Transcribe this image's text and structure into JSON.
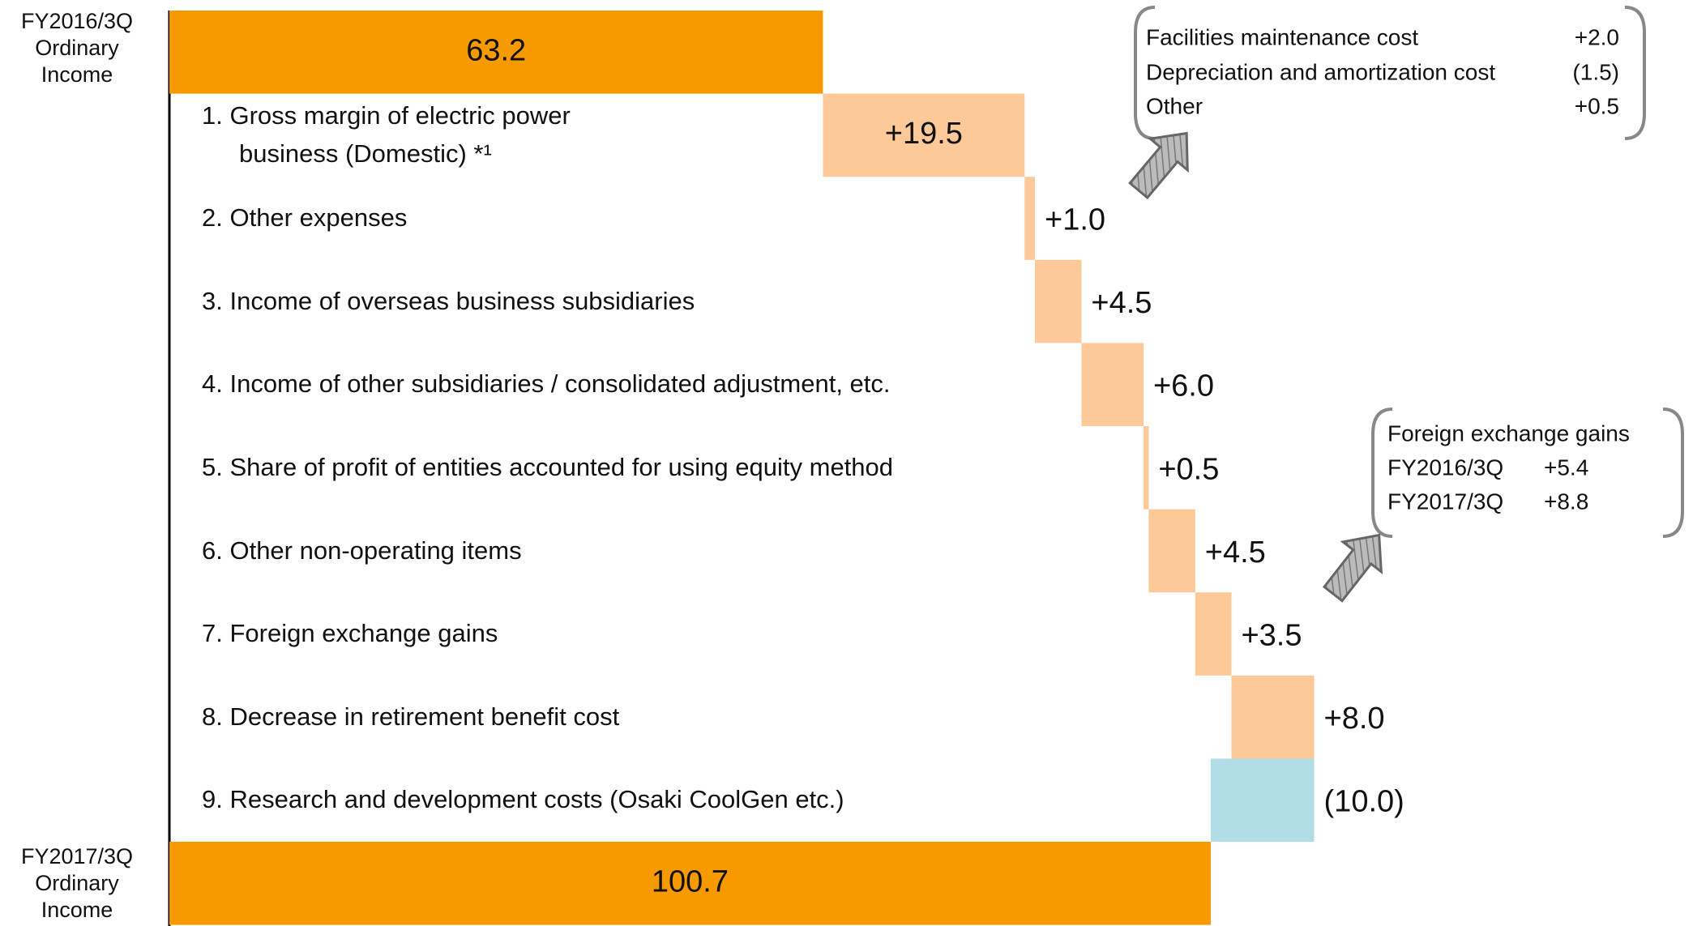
{
  "chart_data": {
    "type": "waterfall",
    "categories": [
      "FY2016/3Q Ordinary Income",
      "1. Gross margin of electric power business (Domestic) *¹",
      "2. Other expenses",
      "3. Income of overseas business subsidiaries",
      "4. Income of other subsidiaries / consolidated adjustment, etc.",
      "5. Share of profit of entities accounted for using equity method",
      "6. Other non-operating items",
      "7. Foreign exchange gains",
      "8. Decrease in retirement benefit cost",
      "9. Research and development costs  (Osaki CoolGen etc.)",
      "FY2017/3Q Ordinary Income"
    ],
    "measure": [
      "total",
      "relative",
      "relative",
      "relative",
      "relative",
      "relative",
      "relative",
      "relative",
      "relative",
      "relative",
      "total"
    ],
    "values": [
      63.2,
      19.5,
      1.0,
      4.5,
      6.0,
      0.5,
      4.5,
      3.5,
      8.0,
      -10.0,
      100.7
    ],
    "value_labels": [
      "63.2",
      "+19.5",
      "+1.0",
      "+4.5",
      "+6.0",
      "+0.5",
      "+4.5",
      "+3.5",
      "+8.0",
      "(10.0)",
      "100.7"
    ],
    "colors": {
      "total": "#f79a00",
      "increase": "#fdc998",
      "decrease": "#b3dde6"
    },
    "annotations": [
      {
        "rows": [
          [
            "Facilities maintenance cost",
            "+2.0"
          ],
          [
            "Depreciation and amortization cost",
            "(1.5)"
          ],
          [
            "Other",
            "+0.5"
          ]
        ]
      },
      {
        "title": "Foreign exchange gains",
        "rows": [
          [
            "FY2016/3Q",
            "+5.4"
          ],
          [
            "FY2017/3Q",
            "+8.8"
          ]
        ]
      }
    ]
  }
}
